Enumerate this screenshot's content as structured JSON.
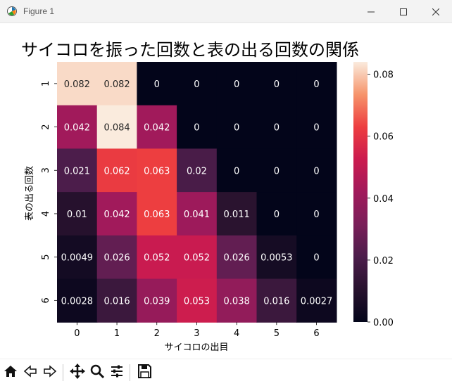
{
  "window": {
    "title": "Figure 1",
    "icons": [
      "matplotlib-icon",
      "minimize-icon",
      "maximize-icon",
      "close-icon"
    ]
  },
  "toolbar": {
    "icons": [
      "home-icon",
      "back-icon",
      "forward-icon",
      "pan-icon",
      "zoom-icon",
      "configure-subplots-icon",
      "save-icon"
    ]
  },
  "chart_data": {
    "type": "heatmap",
    "title": "サイコロを振った回数と表の出る回数の関係",
    "xlabel": "サイコロの出目",
    "ylabel": "表の出る回数",
    "x_categories": [
      "0",
      "1",
      "2",
      "3",
      "4",
      "5",
      "6"
    ],
    "y_categories": [
      "1",
      "2",
      "3",
      "4",
      "5",
      "6"
    ],
    "values": [
      [
        0.082,
        0.082,
        0,
        0,
        0,
        0,
        0
      ],
      [
        0.042,
        0.084,
        0.042,
        0,
        0,
        0,
        0
      ],
      [
        0.021,
        0.062,
        0.063,
        0.02,
        0,
        0,
        0
      ],
      [
        0.01,
        0.042,
        0.063,
        0.041,
        0.011,
        0,
        0
      ],
      [
        0.0049,
        0.026,
        0.052,
        0.052,
        0.026,
        0.0053,
        0
      ],
      [
        0.0028,
        0.016,
        0.039,
        0.053,
        0.038,
        0.016,
        0.0027
      ]
    ],
    "colorbar": {
      "range": [
        0,
        0.084
      ],
      "ticks": [
        "0.00",
        "0.02",
        "0.04",
        "0.06",
        "0.08"
      ],
      "colormap": "rocket"
    },
    "legend": "colorbar-right",
    "grid": false
  }
}
